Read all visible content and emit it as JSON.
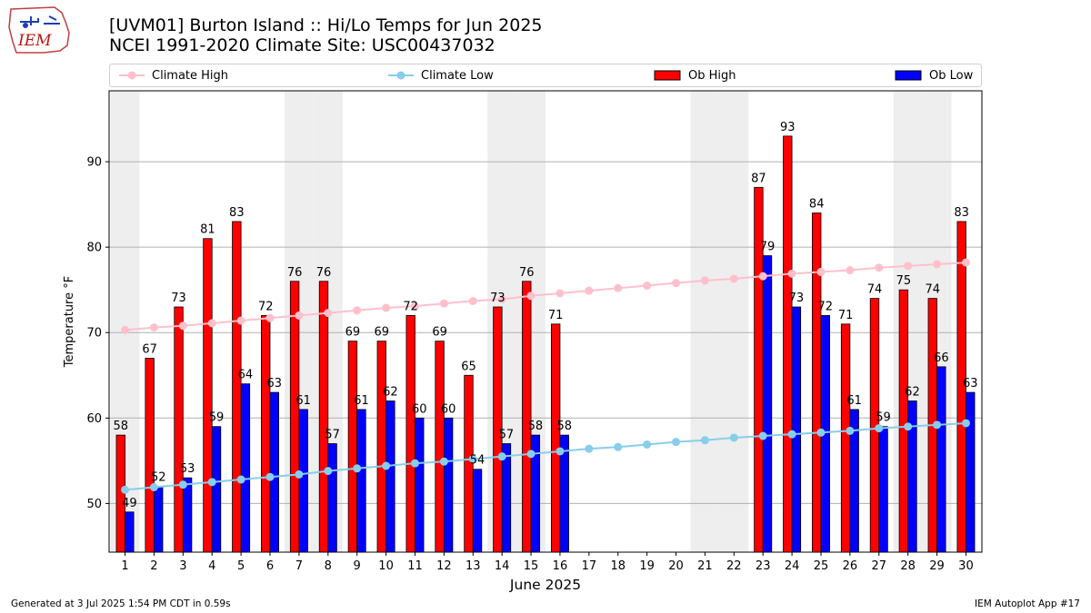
{
  "logo": {
    "text": "IEM"
  },
  "title": {
    "line1": "[UVM01] Burton Island :: Hi/Lo Temps for Jun 2025",
    "line2": "NCEI 1991-2020 Climate Site: USC00437032"
  },
  "footer": {
    "left": "Generated at 3 Jul 2025 1:54 PM CDT in 0.59s",
    "right": "IEM Autoplot App #17"
  },
  "chart_data": {
    "type": "bar",
    "xlabel": "June 2025",
    "ylabel": "Temperature °F",
    "ylim": [
      44.3,
      98.3
    ],
    "yticks": [
      50,
      60,
      70,
      80,
      90
    ],
    "grid": true,
    "legend_position": "top",
    "categories": [
      "1",
      "2",
      "3",
      "4",
      "5",
      "6",
      "7",
      "8",
      "9",
      "10",
      "11",
      "12",
      "13",
      "14",
      "15",
      "16",
      "17",
      "18",
      "19",
      "20",
      "21",
      "22",
      "23",
      "24",
      "25",
      "26",
      "27",
      "28",
      "29",
      "30"
    ],
    "weekend_days": [
      1,
      7,
      8,
      14,
      15,
      21,
      22,
      28,
      29
    ],
    "series": [
      {
        "name": "Climate High",
        "kind": "line",
        "color": "#ffc0cb",
        "values": [
          70.3,
          70.6,
          70.8,
          71.1,
          71.4,
          71.7,
          72.0,
          72.3,
          72.6,
          72.9,
          73.1,
          73.4,
          73.7,
          73.9,
          74.3,
          74.6,
          74.9,
          75.2,
          75.5,
          75.8,
          76.1,
          76.3,
          76.6,
          76.9,
          77.1,
          77.3,
          77.6,
          77.8,
          78.0,
          78.2
        ]
      },
      {
        "name": "Climate Low",
        "kind": "line",
        "color": "#87ceeb",
        "values": [
          51.6,
          51.9,
          52.2,
          52.5,
          52.8,
          53.1,
          53.4,
          53.8,
          54.1,
          54.4,
          54.7,
          54.9,
          55.2,
          55.5,
          55.8,
          56.1,
          56.4,
          56.6,
          56.9,
          57.2,
          57.4,
          57.7,
          57.9,
          58.1,
          58.3,
          58.5,
          58.8,
          59.0,
          59.2,
          59.4
        ]
      },
      {
        "name": "Ob High",
        "kind": "bar",
        "color": "#ff0000",
        "values": [
          58,
          67,
          73,
          81,
          83,
          72,
          76,
          76,
          69,
          69,
          72,
          69,
          65,
          73,
          76,
          71,
          null,
          null,
          null,
          null,
          null,
          null,
          87,
          93,
          84,
          71,
          74,
          75,
          74,
          83
        ]
      },
      {
        "name": "Ob Low",
        "kind": "bar",
        "color": "#0000ff",
        "values": [
          49,
          52,
          53,
          59,
          64,
          63,
          61,
          57,
          61,
          62,
          60,
          60,
          54,
          57,
          58,
          58,
          null,
          null,
          null,
          null,
          null,
          null,
          79,
          73,
          72,
          61,
          59,
          62,
          66,
          63
        ]
      }
    ]
  }
}
